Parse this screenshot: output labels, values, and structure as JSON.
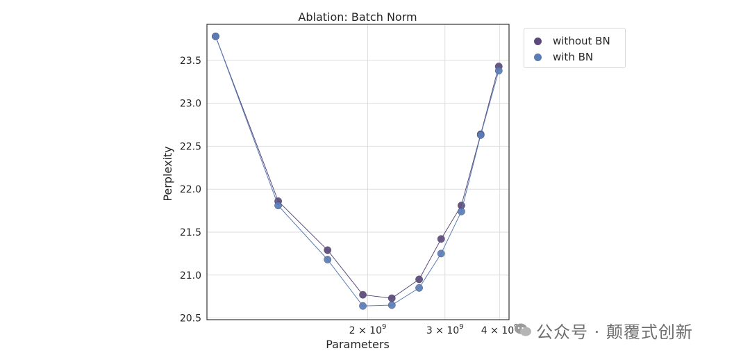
{
  "chart_data": {
    "type": "line",
    "title": "Ablation: Batch Norm",
    "xlabel": "Parameters",
    "ylabel": "Perplexity",
    "xscale": "log",
    "xlim": [
      860000000,
      4200000000
    ],
    "ylim": [
      20.48,
      23.92
    ],
    "x_ticks": [
      {
        "value": 2000000000,
        "label": "2 × 10^9"
      },
      {
        "value": 3000000000,
        "label": "3 × 10^9"
      },
      {
        "value": 4000000000,
        "label": "4 × 10^9"
      }
    ],
    "y_ticks": [
      {
        "value": 20.5,
        "label": "20.5"
      },
      {
        "value": 21.0,
        "label": "21.0"
      },
      {
        "value": 21.5,
        "label": "21.5"
      },
      {
        "value": 22.0,
        "label": "22.0"
      },
      {
        "value": 22.5,
        "label": "22.5"
      },
      {
        "value": 23.0,
        "label": "23.0"
      },
      {
        "value": 23.5,
        "label": "23.5"
      }
    ],
    "grid": true,
    "legend_position": "outside-top-right",
    "series": [
      {
        "name": "without BN",
        "color": "#5c4a7a",
        "x": [
          900000000,
          1250000000,
          1620000000,
          1950000000,
          2270000000,
          2620000000,
          2940000000,
          3270000000,
          3620000000,
          3980000000
        ],
        "y": [
          23.78,
          21.86,
          21.29,
          20.77,
          20.73,
          20.95,
          21.42,
          21.81,
          22.64,
          23.43
        ]
      },
      {
        "name": "with BN",
        "color": "#5a7db5",
        "x": [
          900000000,
          1250000000,
          1620000000,
          1950000000,
          2270000000,
          2620000000,
          2940000000,
          3270000000,
          3620000000,
          3980000000
        ],
        "y": [
          23.78,
          21.81,
          21.18,
          20.64,
          20.65,
          20.85,
          21.25,
          21.74,
          22.63,
          23.38
        ]
      }
    ]
  },
  "watermark": {
    "text": "公众号 · 颠覆式创新",
    "icon": "wechat-icon"
  }
}
